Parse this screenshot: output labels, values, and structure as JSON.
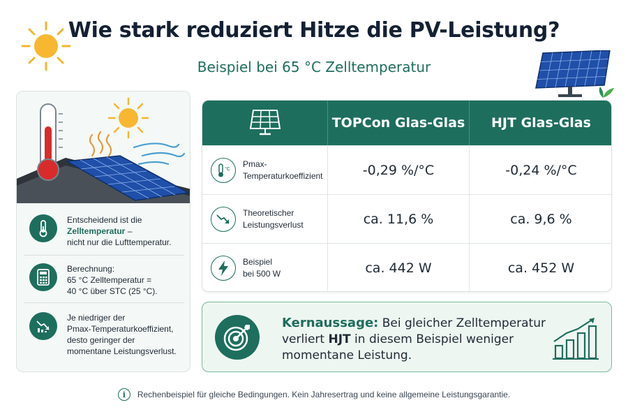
{
  "header": {
    "title": "Wie stark reduziert Hitze die PV-Leistung?",
    "subtitle": "Beispiel bei 65 °C Zelltemperatur"
  },
  "left_panel": {
    "items": [
      {
        "icon": "thermometer-icon",
        "text_before": "Entscheidend ist die",
        "highlight": "Zelltemperatur",
        "text_after": " –",
        "text_line3": "nicht nur die Lufttemperatur."
      },
      {
        "icon": "calculator-icon",
        "line1": "Berechnung:",
        "line2": "65 °C Zelltemperatur =",
        "line3": "40 °C über STC (25 °C)."
      },
      {
        "icon": "declining-chart-icon",
        "line1": "Je niedriger der",
        "line2": "Pmax-Temperaturkoeffizient,",
        "line3": "desto geringer der",
        "line4": "momentane Leistungsverlust."
      }
    ]
  },
  "table": {
    "header_icon": "solar-panel-icon",
    "columns": [
      "TOPCon Glas-Glas",
      "HJT Glas-Glas"
    ],
    "rows": [
      {
        "icon": "thermometer-celsius-icon",
        "label_line1": "Pmax-",
        "label_line2": "Temperaturkoeffizient",
        "values": [
          "-0,29 %/°C",
          "-0,24 %/°C"
        ]
      },
      {
        "icon": "trend-down-icon",
        "label_line1": "Theoretischer",
        "label_line2": "Leistungsverlust",
        "values": [
          "ca. 11,6 %",
          "ca. 9,6 %"
        ]
      },
      {
        "icon": "lightning-icon",
        "label_line1": "Beispiel",
        "label_line2": "bei 500 W",
        "values": [
          "ca. 442 W",
          "ca. 452 W"
        ]
      }
    ]
  },
  "key_message": {
    "icon": "target-icon",
    "heading": "Kernaussage:",
    "text_part1": " Bei gleicher Zelltemperatur verliert ",
    "bold": "HJT",
    "text_part2": " in diesem Beispiel weniger momentane Leistung."
  },
  "footer": {
    "icon": "info-icon",
    "text": "Rechenbeispiel für gleiche Bedingungen. Kein Jahresertrag und keine allgemeine Leistungsgarantie."
  },
  "colors": {
    "primary_green": "#1e6e5e",
    "title_dark": "#142033",
    "sun_yellow": "#f5b52e",
    "thermometer_red": "#d92b2b",
    "panel_blue": "#1f4fa8"
  }
}
